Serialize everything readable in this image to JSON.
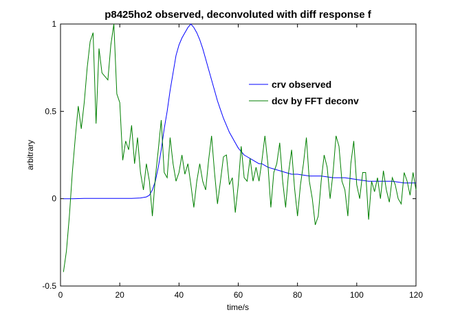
{
  "chart_data": {
    "type": "line",
    "title": "p8425ho2 observed, deconvoluted with diff response f",
    "xlabel": "time/s",
    "ylabel": "arbitrary",
    "xlim": [
      0,
      120
    ],
    "ylim": [
      -0.5,
      1
    ],
    "xticks": [
      0,
      20,
      40,
      60,
      80,
      100,
      120
    ],
    "yticks": [
      -0.5,
      0,
      0.5,
      1
    ],
    "xtick_labels": [
      "0",
      "20",
      "40",
      "60",
      "80",
      "100",
      "120"
    ],
    "ytick_labels": [
      "-0.5",
      "0",
      "0.5",
      "1"
    ],
    "legend_position": "upper-right-inside",
    "colors": {
      "observed": "#0000ff",
      "deconv": "#007f00",
      "axis": "#000000"
    },
    "series": [
      {
        "name": "crv observed",
        "x": [
          1,
          4,
          8,
          12,
          16,
          20,
          24,
          27,
          29,
          30,
          31,
          32,
          33,
          34,
          35,
          36,
          37,
          38,
          39,
          40,
          41,
          42,
          43,
          44,
          45,
          46,
          47,
          48,
          49,
          50,
          51,
          52,
          53,
          54,
          55,
          56,
          57,
          58,
          59,
          60,
          61,
          62,
          63,
          64,
          65,
          66,
          67,
          68,
          69,
          70,
          72,
          74,
          76,
          78,
          80,
          84,
          88,
          92,
          96,
          100,
          104,
          108,
          112,
          116,
          120
        ],
        "y": [
          0.0,
          0.0,
          0.002,
          0.002,
          0.002,
          0.002,
          0.002,
          0.004,
          0.01,
          0.02,
          0.05,
          0.1,
          0.18,
          0.28,
          0.4,
          0.5,
          0.62,
          0.72,
          0.82,
          0.88,
          0.92,
          0.95,
          0.98,
          1.0,
          0.98,
          0.95,
          0.91,
          0.86,
          0.8,
          0.74,
          0.68,
          0.62,
          0.56,
          0.51,
          0.46,
          0.42,
          0.38,
          0.35,
          0.32,
          0.29,
          0.27,
          0.25,
          0.24,
          0.23,
          0.22,
          0.21,
          0.2,
          0.2,
          0.19,
          0.18,
          0.17,
          0.16,
          0.15,
          0.14,
          0.14,
          0.13,
          0.13,
          0.12,
          0.12,
          0.11,
          0.1,
          0.1,
          0.1,
          0.09,
          0.09
        ]
      },
      {
        "name": "dcv by FFT deconv",
        "x": [
          1,
          2,
          3,
          4,
          5,
          6,
          7,
          8,
          9,
          10,
          11,
          12,
          13,
          14,
          15,
          16,
          17,
          18,
          19,
          20,
          21,
          22,
          23,
          24,
          25,
          26,
          27,
          28,
          29,
          30,
          31,
          32,
          33,
          34,
          35,
          36,
          37,
          38,
          39,
          40,
          41,
          42,
          43,
          44,
          45,
          46,
          47,
          48,
          49,
          50,
          51,
          52,
          53,
          54,
          55,
          56,
          57,
          58,
          59,
          60,
          61,
          62,
          63,
          64,
          65,
          66,
          67,
          68,
          69,
          70,
          71,
          72,
          73,
          74,
          75,
          76,
          77,
          78,
          79,
          80,
          81,
          82,
          83,
          84,
          85,
          86,
          87,
          88,
          89,
          90,
          91,
          92,
          93,
          94,
          95,
          96,
          97,
          98,
          99,
          100,
          101,
          102,
          103,
          104,
          105,
          106,
          107,
          108,
          109,
          110,
          111,
          112,
          113,
          114,
          115,
          116,
          117,
          118,
          119,
          120
        ],
        "y": [
          -0.42,
          -0.3,
          -0.1,
          0.15,
          0.35,
          0.53,
          0.4,
          0.55,
          0.75,
          0.9,
          0.95,
          0.43,
          0.86,
          0.72,
          0.7,
          0.68,
          0.88,
          1.0,
          0.6,
          0.55,
          0.22,
          0.33,
          0.28,
          0.42,
          0.2,
          0.35,
          0.15,
          0.05,
          0.2,
          0.1,
          -0.1,
          0.12,
          0.28,
          0.45,
          0.15,
          0.12,
          0.35,
          0.2,
          0.1,
          0.15,
          0.25,
          0.14,
          0.2,
          0.08,
          -0.05,
          0.1,
          0.2,
          0.1,
          0.05,
          0.22,
          0.36,
          0.15,
          -0.03,
          0.1,
          0.24,
          0.25,
          0.08,
          0.12,
          -0.08,
          0.08,
          0.3,
          0.12,
          0.1,
          0.23,
          0.1,
          0.18,
          0.1,
          0.22,
          0.36,
          0.2,
          -0.05,
          0.15,
          0.2,
          0.32,
          0.1,
          -0.05,
          0.15,
          0.28,
          0.06,
          -0.1,
          0.08,
          0.2,
          0.35,
          0.1,
          0.0,
          -0.15,
          -0.1,
          0.1,
          0.25,
          0.18,
          0.0,
          0.15,
          0.36,
          0.3,
          0.1,
          0.05,
          -0.1,
          0.2,
          0.33,
          0.08,
          0.0,
          0.15,
          0.15,
          -0.12,
          0.1,
          0.04,
          0.12,
          0.0,
          0.16,
          0.05,
          -0.02,
          0.12,
          0.08,
          0.0,
          -0.03,
          0.15,
          0.1,
          0.02,
          0.15,
          0.05
        ]
      }
    ]
  }
}
